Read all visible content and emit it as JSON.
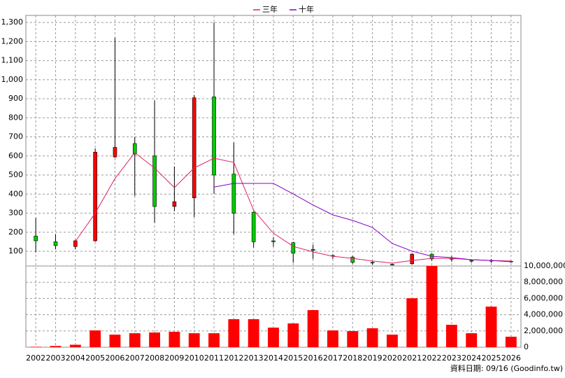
{
  "chart_data": {
    "type": "candlestick",
    "categories": [
      "2002",
      "2003",
      "2004",
      "2005",
      "2006",
      "2007",
      "2008",
      "2009",
      "2010",
      "2011",
      "2012",
      "2013",
      "2014",
      "2015",
      "2016",
      "2017",
      "2018",
      "2019",
      "2020",
      "2021",
      "2022",
      "2023",
      "2024",
      "2025",
      "2026"
    ],
    "open": [
      180,
      150,
      125,
      155,
      595,
      665,
      600,
      335,
      380,
      910,
      505,
      305,
      155,
      145,
      110,
      78,
      70,
      42,
      32,
      35,
      85,
      62,
      52,
      52,
      48
    ],
    "high": [
      275,
      190,
      160,
      640,
      1220,
      700,
      890,
      545,
      920,
      1300,
      670,
      310,
      175,
      150,
      135,
      85,
      75,
      50,
      35,
      90,
      90,
      75,
      55,
      60,
      50
    ],
    "low": [
      95,
      110,
      110,
      150,
      590,
      390,
      250,
      310,
      280,
      400,
      190,
      120,
      125,
      40,
      60,
      60,
      35,
      30,
      25,
      30,
      50,
      45,
      40,
      40,
      40
    ],
    "close": [
      155,
      130,
      155,
      620,
      645,
      610,
      335,
      360,
      905,
      500,
      300,
      150,
      150,
      90,
      105,
      75,
      42,
      40,
      30,
      85,
      60,
      60,
      50,
      50,
      45
    ],
    "up_color": "#ff0000",
    "down_color": "#00cc00",
    "ylim": [
      23,
      1337
    ],
    "yticks": [
      100,
      200,
      300,
      400,
      500,
      600,
      700,
      800,
      900,
      {
        "value": 1000,
        "label": "1,000"
      },
      {
        "value": 1100,
        "label": "1,100"
      },
      {
        "value": 1200,
        "label": "1,200"
      },
      {
        "value": 1300,
        "label": "1,300"
      }
    ],
    "series": [
      {
        "name": "三年",
        "color": "#e0206a",
        "values": [
          null,
          null,
          152,
          300,
          482,
          617,
          537,
          434,
          537,
          588,
          566,
          316,
          195,
          126,
          97,
          74,
          63,
          49,
          38,
          52,
          63,
          63,
          56,
          52,
          49
        ]
      },
      {
        "name": "十年",
        "color": "#8a00c8",
        "values": [
          null,
          null,
          null,
          null,
          null,
          null,
          null,
          null,
          null,
          437,
          456,
          456,
          456,
          401,
          343,
          291,
          262,
          225,
          141,
          101,
          74,
          67,
          56,
          52,
          45
        ]
      }
    ],
    "volume": {
      "color": "#ff0000",
      "values": [
        50000,
        150000,
        300000,
        2070000,
        1550000,
        1720000,
        1810000,
        1900000,
        1720000,
        1720000,
        3450000,
        3450000,
        2410000,
        2930000,
        4570000,
        2070000,
        1980000,
        2330000,
        1550000,
        6030000,
        10000000,
        2760000,
        1720000,
        5000000,
        1290000
      ],
      "ylim": [
        0,
        10000000
      ],
      "yticks": [
        0,
        {
          "value": 2000000,
          "label": "2,000,000"
        },
        {
          "value": 4000000,
          "label": "4,000,000"
        },
        {
          "value": 6000000,
          "label": "6,000,000"
        },
        {
          "value": 8000000,
          "label": "8,000,000"
        },
        {
          "value": 10000000,
          "label": "10,000,000"
        }
      ]
    },
    "grid": true,
    "legend": "top",
    "footer": "資料日期: 09/16 (Goodinfo.tw)"
  }
}
